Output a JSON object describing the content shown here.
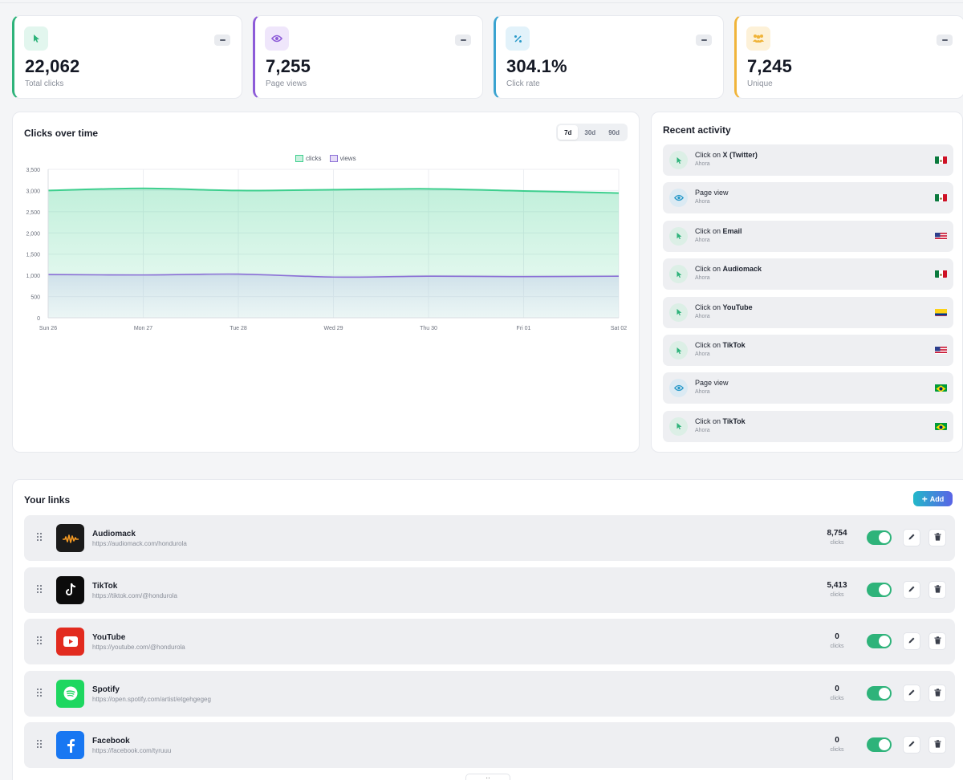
{
  "stats": [
    {
      "value": "22,062",
      "label": "Total clicks",
      "icon": "cursor-icon",
      "accent": "#2eb37a",
      "icon_bg": "#e2f6ee",
      "icon_color": "#2eb37a"
    },
    {
      "value": "7,255",
      "label": "Page views",
      "icon": "eye-icon",
      "accent": "#8d5bd8",
      "icon_bg": "#efe6fb",
      "icon_color": "#8d5bd8"
    },
    {
      "value": "304.1%",
      "label": "Click rate",
      "icon": "percent-icon",
      "accent": "#3aa3d0",
      "icon_bg": "#e2f2fa",
      "icon_color": "#2a9ac9"
    },
    {
      "value": "7,245",
      "label": "Unique",
      "icon": "users-icon",
      "accent": "#f0b43a",
      "icon_bg": "#fdf1d8",
      "icon_color": "#f0b43a"
    }
  ],
  "chart": {
    "title": "Clicks over time",
    "ranges": [
      "7d",
      "30d",
      "90d"
    ],
    "selected_range": "7d"
  },
  "chart_data": {
    "type": "area",
    "categories": [
      "Sun 26",
      "Mon 27",
      "Tue 28",
      "Wed 29",
      "Thu 30",
      "Fri 01",
      "Sat 02"
    ],
    "series": [
      {
        "name": "clicks",
        "values": [
          3000,
          3050,
          3000,
          3020,
          3040,
          2990,
          2940
        ],
        "color": "#3ecf8e"
      },
      {
        "name": "views",
        "values": [
          1020,
          1010,
          1030,
          960,
          980,
          970,
          980
        ],
        "color": "#8b6fd6"
      }
    ],
    "yticks": [
      0,
      500,
      1000,
      1500,
      2000,
      2500,
      3000,
      3500
    ],
    "ylim": [
      0,
      3500
    ],
    "grid": true,
    "legend": "top-center"
  },
  "activity": {
    "title": "Recent activity",
    "items": [
      {
        "prefix": "Click on ",
        "target": "X (Twitter)",
        "time": "Ahora",
        "type": "click",
        "flag": "mx"
      },
      {
        "prefix": "Page view",
        "target": "",
        "time": "Ahora",
        "type": "view",
        "flag": "mx"
      },
      {
        "prefix": "Click on ",
        "target": "Email",
        "time": "Ahora",
        "type": "click",
        "flag": "us"
      },
      {
        "prefix": "Click on ",
        "target": "Audiomack",
        "time": "Ahora",
        "type": "click",
        "flag": "mx"
      },
      {
        "prefix": "Click on ",
        "target": "YouTube",
        "time": "Ahora",
        "type": "click",
        "flag": "co"
      },
      {
        "prefix": "Click on ",
        "target": "TikTok",
        "time": "Ahora",
        "type": "click",
        "flag": "us"
      },
      {
        "prefix": "Page view",
        "target": "",
        "time": "Ahora",
        "type": "view",
        "flag": "br"
      },
      {
        "prefix": "Click on ",
        "target": "TikTok",
        "time": "Ahora",
        "type": "click",
        "flag": "br"
      }
    ]
  },
  "links": {
    "title": "Your links",
    "add_label": "Add",
    "clicks_label": "clicks",
    "items": [
      {
        "name": "Audiomack",
        "url": "https://audiomack.com/hondurola",
        "clicks": "8,754",
        "logo_bg": "#1a1a1a",
        "icon": "audiomack-icon",
        "enabled": true
      },
      {
        "name": "TikTok",
        "url": "https://tiktok.com/@hondurola",
        "clicks": "5,413",
        "logo_bg": "#0b0b0b",
        "icon": "tiktok-icon",
        "enabled": true
      },
      {
        "name": "YouTube",
        "url": "https://youtube.com/@hondurola",
        "clicks": "0",
        "logo_bg": "#e22b1f",
        "icon": "youtube-icon",
        "enabled": true
      },
      {
        "name": "Spotify",
        "url": "https://open.spotify.com/artist/etgehgegeg",
        "clicks": "0",
        "logo_bg": "#1ed760",
        "icon": "spotify-icon",
        "enabled": true
      },
      {
        "name": "Facebook",
        "url": "https://facebook.com/tyruuu",
        "clicks": "0",
        "logo_bg": "#1877f2",
        "icon": "facebook-icon",
        "enabled": true
      }
    ]
  }
}
